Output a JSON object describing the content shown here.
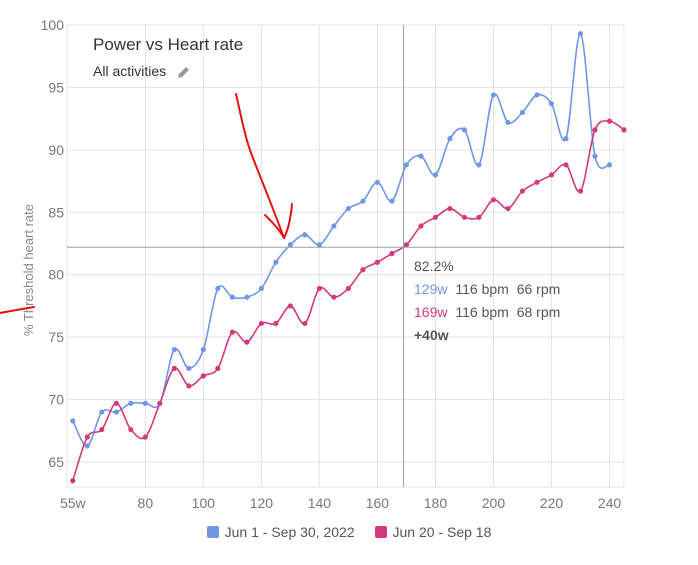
{
  "chart_data": {
    "type": "line",
    "title": "Power vs Heart rate",
    "subtitle": "All activities",
    "ylabel": "% Threshold heart rate",
    "xlabel": "",
    "xlim": [
      53,
      245
    ],
    "ylim": [
      63,
      100
    ],
    "x_ticks": [
      {
        "value": 55,
        "label": "55w"
      },
      {
        "value": 80,
        "label": "80"
      },
      {
        "value": 100,
        "label": "100"
      },
      {
        "value": 120,
        "label": "120"
      },
      {
        "value": 140,
        "label": "140"
      },
      {
        "value": 160,
        "label": "160"
      },
      {
        "value": 180,
        "label": "180"
      },
      {
        "value": 200,
        "label": "200"
      },
      {
        "value": 220,
        "label": "220"
      },
      {
        "value": 240,
        "label": "240"
      }
    ],
    "y_ticks": [
      {
        "value": 65,
        "label": "65"
      },
      {
        "value": 70,
        "label": "70"
      },
      {
        "value": 75,
        "label": "75"
      },
      {
        "value": 80,
        "label": "80"
      },
      {
        "value": 85,
        "label": "85"
      },
      {
        "value": 90,
        "label": "90"
      },
      {
        "value": 95,
        "label": "95"
      },
      {
        "value": 100,
        "label": "100"
      }
    ],
    "grid": true,
    "legend_position": "bottom",
    "series": [
      {
        "name": "Jun 1 - Sep 30, 2022",
        "color": "#6f97e5",
        "points": [
          [
            55,
            68.3
          ],
          [
            60,
            66.3
          ],
          [
            65,
            69.0
          ],
          [
            70,
            69.0
          ],
          [
            75,
            69.7
          ],
          [
            80,
            69.7
          ],
          [
            85,
            69.7
          ],
          [
            90,
            74.0
          ],
          [
            95,
            72.5
          ],
          [
            100,
            74.0
          ],
          [
            105,
            78.9
          ],
          [
            110,
            78.2
          ],
          [
            115,
            78.2
          ],
          [
            120,
            78.9
          ],
          [
            125,
            81.0
          ],
          [
            130,
            82.4
          ],
          [
            135,
            83.2
          ],
          [
            140,
            82.4
          ],
          [
            145,
            83.9
          ],
          [
            150,
            85.3
          ],
          [
            155,
            85.9
          ],
          [
            160,
            87.4
          ],
          [
            165,
            85.9
          ],
          [
            170,
            88.8
          ],
          [
            175,
            89.5
          ],
          [
            180,
            88.0
          ],
          [
            185,
            90.9
          ],
          [
            190,
            91.6
          ],
          [
            195,
            88.8
          ],
          [
            200,
            94.4
          ],
          [
            205,
            92.2
          ],
          [
            210,
            93.0
          ],
          [
            215,
            94.4
          ],
          [
            220,
            93.7
          ],
          [
            225,
            90.9
          ],
          [
            230,
            99.3
          ],
          [
            235,
            89.5
          ],
          [
            240,
            88.8
          ]
        ]
      },
      {
        "name": "Jun 20 - Sep 18",
        "color": "#d23a7c",
        "points": [
          [
            55,
            63.5
          ],
          [
            60,
            67.0
          ],
          [
            65,
            67.6
          ],
          [
            70,
            69.7
          ],
          [
            75,
            67.6
          ],
          [
            80,
            67.0
          ],
          [
            85,
            69.7
          ],
          [
            90,
            72.5
          ],
          [
            95,
            71.1
          ],
          [
            100,
            71.9
          ],
          [
            105,
            72.5
          ],
          [
            110,
            75.4
          ],
          [
            115,
            74.6
          ],
          [
            120,
            76.1
          ],
          [
            125,
            76.1
          ],
          [
            130,
            77.5
          ],
          [
            135,
            76.1
          ],
          [
            140,
            78.9
          ],
          [
            145,
            78.2
          ],
          [
            150,
            78.9
          ],
          [
            155,
            80.4
          ],
          [
            160,
            81.0
          ],
          [
            165,
            81.7
          ],
          [
            170,
            82.4
          ],
          [
            175,
            83.9
          ],
          [
            180,
            84.6
          ],
          [
            185,
            85.3
          ],
          [
            190,
            84.6
          ],
          [
            195,
            84.6
          ],
          [
            200,
            86.0
          ],
          [
            205,
            85.3
          ],
          [
            210,
            86.7
          ],
          [
            215,
            87.4
          ],
          [
            220,
            88.0
          ],
          [
            225,
            88.8
          ],
          [
            230,
            86.7
          ],
          [
            235,
            91.6
          ],
          [
            240,
            92.3
          ],
          [
            245,
            91.6
          ]
        ]
      }
    ],
    "crosshair": {
      "x": 169,
      "y": 82.2
    },
    "tooltip": {
      "value": "82.2%",
      "rows": [
        {
          "watts": "129w",
          "bpm": "116 bpm",
          "rpm": "66 rpm",
          "color": "#6f97e5"
        },
        {
          "watts": "169w",
          "bpm": "116 bpm",
          "rpm": "68 rpm",
          "color": "#d23a7c"
        }
      ],
      "delta": "+40w"
    }
  },
  "edit_icon": "pencil-icon",
  "colors": {
    "grid": "#e3e3e3",
    "crosshair": "#9e9e9e",
    "annotation": "#e0140f"
  }
}
